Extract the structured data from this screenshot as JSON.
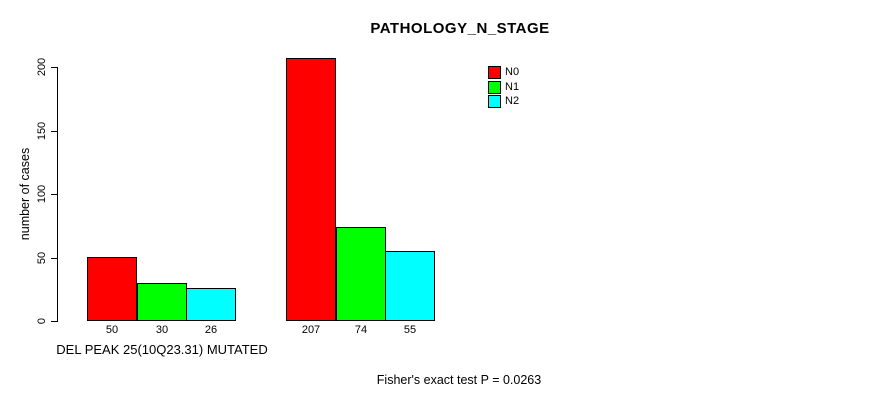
{
  "chart_data": {
    "type": "bar",
    "title": "PATHOLOGY_N_STAGE",
    "ylabel": "number of cases",
    "xlabel": "",
    "ylim": [
      0,
      200
    ],
    "yticks": [
      0,
      50,
      100,
      150,
      200
    ],
    "grid": false,
    "legend_position": "top-right",
    "categories": [
      "DEL PEAK 25(10Q23.31) MUTATED",
      ""
    ],
    "groups": [
      {
        "label": "DEL PEAK 25(10Q23.31) MUTATED",
        "values": [
          50,
          30,
          26
        ]
      },
      {
        "label": "",
        "values": [
          207,
          74,
          55
        ]
      }
    ],
    "series": [
      {
        "name": "N0",
        "color": "#FF0000",
        "values": [
          50,
          207
        ]
      },
      {
        "name": "N1",
        "color": "#00FF00",
        "values": [
          30,
          74
        ]
      },
      {
        "name": "N2",
        "color": "#00FFFF",
        "values": [
          26,
          55
        ]
      }
    ],
    "annotation": "Fisher's exact test P = 0.0263"
  },
  "colors": {
    "background": "#FFFFFF",
    "axis": "#000000",
    "bar_border": "#000000",
    "text": "#000000"
  }
}
